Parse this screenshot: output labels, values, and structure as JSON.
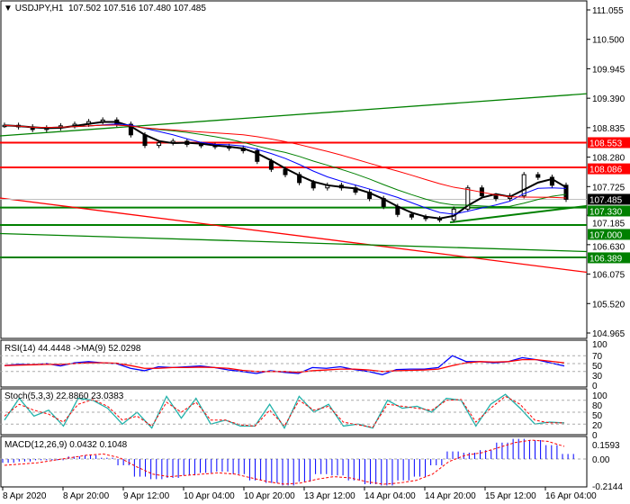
{
  "header": {
    "symbol": "USDJPY,H1",
    "ohlc": "107.502 107.516 107.480 107.485"
  },
  "price_axis": [
    "111.055",
    "110.500",
    "109.945",
    "109.390",
    "108.835",
    "108.280",
    "107.725",
    "107.185",
    "106.630",
    "106.075",
    "105.520",
    "104.965"
  ],
  "price_tags": [
    {
      "value": "108.553",
      "color": "#ff0000"
    },
    {
      "value": "108.086",
      "color": "#ff0000"
    },
    {
      "value": "107.485",
      "color": "#000000"
    },
    {
      "value": "107.330",
      "color": "#008000"
    },
    {
      "value": "107.000",
      "color": "#008000"
    },
    {
      "value": "106.389",
      "color": "#008000"
    }
  ],
  "indicators": {
    "rsi": {
      "label": "RSI(14) 44.4448  ->MA(9) 52.0298",
      "ticks": [
        "100",
        "70",
        "50",
        "30",
        "0"
      ]
    },
    "stoch": {
      "label": "Stoch(5,3,3) 22.8860 23.0383",
      "ticks": [
        "100",
        "80",
        "50",
        "20",
        "0"
      ]
    },
    "macd": {
      "label": "MACD(12,26,9) 0.0432 0.1048",
      "ticks": [
        "0.1593",
        "0.00",
        "-0.2144"
      ]
    }
  },
  "time_axis": [
    "8 Apr 2020",
    "8 Apr 20:00",
    "9 Apr 12:00",
    "10 Apr 04:00",
    "10 Apr 20:00",
    "13 Apr 12:00",
    "14 Apr 04:00",
    "14 Apr 20:00",
    "15 Apr 12:00",
    "16 Apr 04:00"
  ],
  "chart_data": {
    "type": "candlestick",
    "title": "USDJPY,H1",
    "ylim": [
      104.965,
      111.055
    ],
    "closes": [
      108.88,
      108.85,
      108.8,
      108.83,
      108.87,
      108.9,
      108.95,
      108.98,
      108.9,
      108.7,
      108.5,
      108.55,
      108.58,
      108.52,
      108.5,
      108.48,
      108.45,
      108.4,
      108.2,
      108.05,
      107.95,
      107.8,
      107.7,
      107.75,
      107.7,
      107.62,
      107.5,
      107.35,
      107.2,
      107.15,
      107.12,
      107.1,
      107.3,
      107.7,
      107.55,
      107.5,
      107.55,
      107.95,
      107.9,
      107.75,
      107.485
    ],
    "levels": [
      {
        "price": 108.553,
        "color": "#ff0000"
      },
      {
        "price": 108.086,
        "color": "#ff0000"
      },
      {
        "price": 107.33,
        "color": "#008000"
      },
      {
        "price": 107.0,
        "color": "#008000"
      },
      {
        "price": 106.389,
        "color": "#008000"
      }
    ],
    "trendlines": [
      {
        "from": 108.68,
        "to": 109.475,
        "color": "#008000"
      },
      {
        "from": 107.51,
        "to": 106.11,
        "color": "#ff0000"
      },
      {
        "from": 106.84,
        "to": 106.5,
        "color": "#008000"
      }
    ],
    "rsi": [
      45,
      48,
      47,
      50,
      44,
      52,
      55,
      52,
      50,
      38,
      32,
      42,
      40,
      42,
      44,
      40,
      34,
      30,
      25,
      32,
      28,
      25,
      40,
      38,
      42,
      35,
      30,
      22,
      35,
      36,
      36,
      40,
      70,
      55,
      55,
      52,
      55,
      65,
      60,
      52,
      44
    ],
    "rsi_ma": [
      45,
      46,
      47,
      48,
      48,
      50,
      52,
      52,
      51,
      45,
      38,
      38,
      40,
      40,
      41,
      40,
      38,
      33,
      30,
      30,
      30,
      28,
      32,
      34,
      36,
      36,
      34,
      30,
      32,
      33,
      34,
      36,
      45,
      52,
      55,
      54,
      55,
      60,
      60,
      56,
      52
    ],
    "stoch": [
      30,
      85,
      40,
      55,
      15,
      85,
      80,
      60,
      20,
      50,
      10,
      90,
      35,
      85,
      20,
      30,
      15,
      15,
      70,
      10,
      90,
      50,
      70,
      15,
      20,
      10,
      80,
      60,
      65,
      50,
      85,
      80,
      15,
      70,
      95,
      60,
      20,
      25,
      22.9
    ],
    "stoch_signal": [
      40,
      70,
      55,
      45,
      25,
      70,
      82,
      65,
      30,
      40,
      15,
      75,
      50,
      75,
      30,
      30,
      18,
      15,
      55,
      15,
      80,
      55,
      65,
      25,
      18,
      12,
      70,
      65,
      60,
      55,
      80,
      82,
      25,
      60,
      90,
      70,
      30,
      23,
      23.0
    ],
    "macd": [
      -0.03,
      -0.02,
      -0.01,
      -0.01,
      0.02,
      0.03,
      0.01,
      -0.05,
      -0.14,
      -0.16,
      -0.15,
      -0.13,
      -0.11,
      -0.1,
      -0.12,
      -0.17,
      -0.19,
      -0.21,
      -0.18,
      -0.12,
      -0.13,
      -0.17,
      -0.2,
      -0.21,
      -0.17,
      -0.14,
      -0.05,
      0.06,
      0.05,
      0.07,
      0.13,
      0.16,
      0.15,
      0.11,
      0.04
    ],
    "macd_signal": [
      -0.05,
      -0.04,
      -0.03,
      -0.01,
      0.01,
      0.03,
      0.04,
      0.01,
      -0.06,
      -0.12,
      -0.14,
      -0.13,
      -0.12,
      -0.11,
      -0.12,
      -0.15,
      -0.18,
      -0.2,
      -0.19,
      -0.16,
      -0.14,
      -0.15,
      -0.18,
      -0.2,
      -0.19,
      -0.17,
      -0.12,
      -0.02,
      0.03,
      0.05,
      0.09,
      0.13,
      0.15,
      0.14,
      0.1
    ]
  }
}
